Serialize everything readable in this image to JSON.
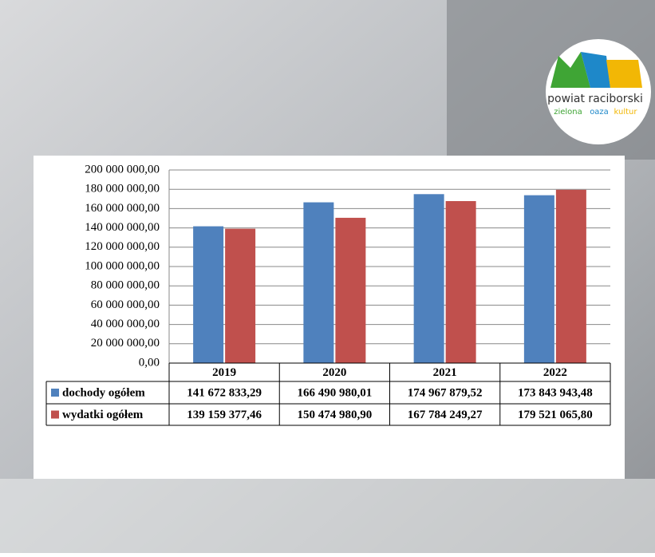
{
  "chart_data": {
    "type": "bar",
    "categories": [
      "2019",
      "2020",
      "2021",
      "2022"
    ],
    "series": [
      {
        "name": "dochody ogółem",
        "color": "#4f81bd",
        "values": [
          141672833.29,
          166490980.01,
          174967879.52,
          173843943.48
        ],
        "value_labels": [
          "141 672 833,29",
          "166 490 980,01",
          "174 967 879,52",
          "173 843 943,48"
        ]
      },
      {
        "name": "wydatki ogółem",
        "color": "#c0504d",
        "values": [
          139159377.46,
          150474980.9,
          167784249.27,
          179521065.8
        ],
        "value_labels": [
          "139 159 377,46",
          "150 474 980,90",
          "167 784 249,27",
          "179 521 065,80"
        ]
      }
    ],
    "ylim": [
      0,
      200000000
    ],
    "yticks": [
      {
        "value": 0,
        "label": "0,00"
      },
      {
        "value": 20000000,
        "label": "20 000 000,00"
      },
      {
        "value": 40000000,
        "label": "40 000 000,00"
      },
      {
        "value": 60000000,
        "label": "60 000 000,00"
      },
      {
        "value": 80000000,
        "label": "80 000 000,00"
      },
      {
        "value": 100000000,
        "label": "100 000 000,00"
      },
      {
        "value": 120000000,
        "label": "120 000 000,00"
      },
      {
        "value": 140000000,
        "label": "140 000 000,00"
      },
      {
        "value": 160000000,
        "label": "160 000 000,00"
      },
      {
        "value": 180000000,
        "label": "180 000 000,00"
      },
      {
        "value": 200000000,
        "label": "200 000 000,00"
      }
    ],
    "grid": true
  },
  "logo": {
    "name": "powiat raciborski",
    "tagline": [
      "zielona",
      "oaza",
      "kultur"
    ]
  }
}
